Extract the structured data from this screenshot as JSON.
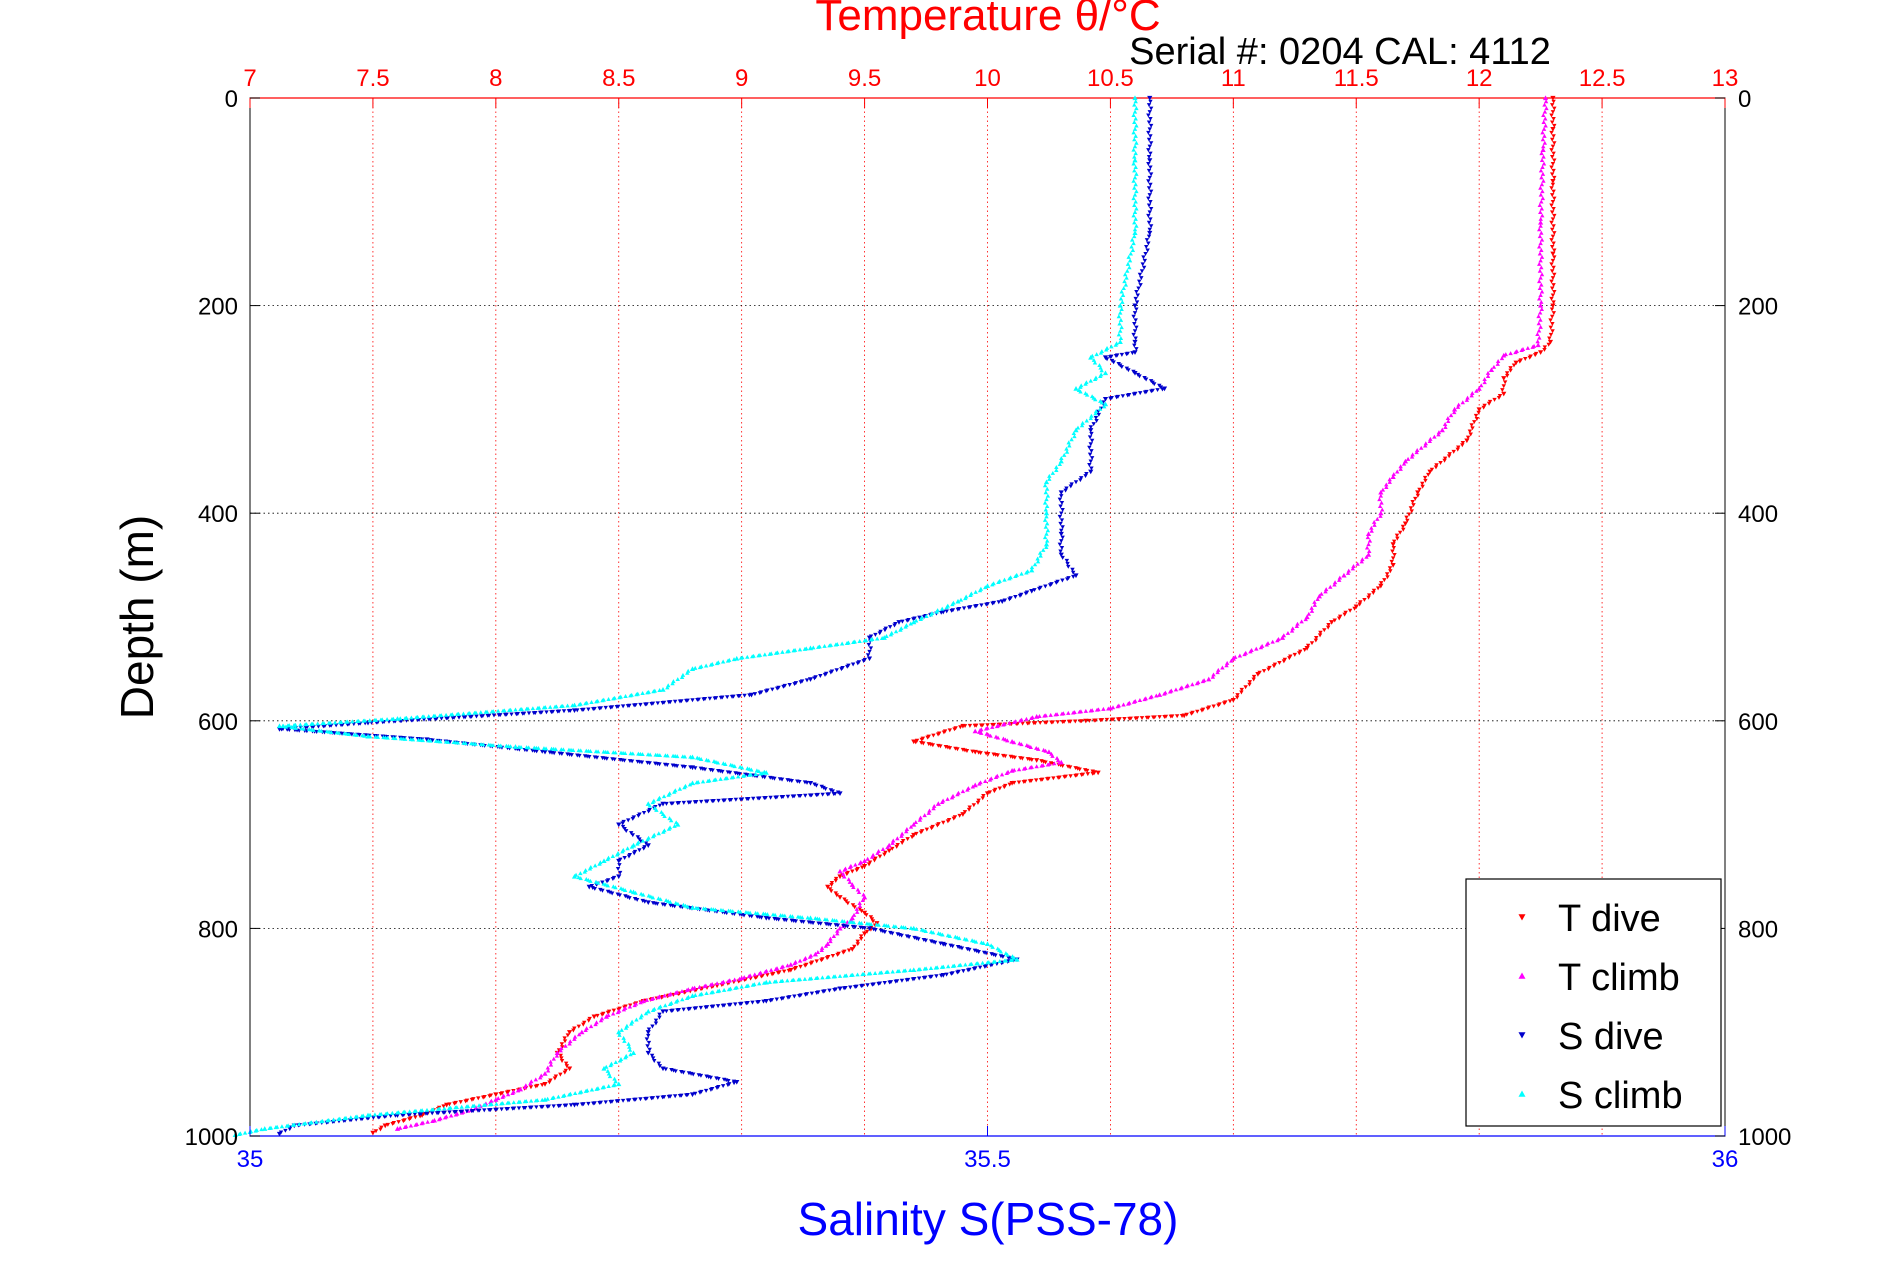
{
  "chart_data": {
    "type": "scatter",
    "title": "Temperature θ/°C",
    "subtitle": "Serial #: 0204  CAL: 4112",
    "xlabel": "Salinity S(PSS-78)",
    "ylabel": "Depth (m)",
    "top_axis": {
      "label": "Temperature θ/°C",
      "lim": [
        7,
        13
      ],
      "ticks": [
        "7",
        "7.5",
        "8",
        "8.5",
        "9",
        "9.5",
        "10",
        "10.5",
        "11",
        "11.5",
        "12",
        "12.5",
        "13"
      ],
      "color": "#ff0000"
    },
    "bottom_axis": {
      "label": "Salinity S(PSS-78)",
      "lim": [
        35,
        36
      ],
      "ticks": [
        "35",
        "35.5",
        "36"
      ],
      "color": "#0000ff"
    },
    "y_axis": {
      "lim": [
        0,
        1000
      ],
      "reversed": true,
      "ticks": [
        "0",
        "200",
        "400",
        "600",
        "800",
        "1000"
      ]
    },
    "grid": true,
    "legend_position": "bottom-right",
    "colors": {
      "t_dive": "#ff0000",
      "t_climb": "#ff00ff",
      "s_dive": "#0000cc",
      "s_climb": "#00ffff",
      "temp_axis": "#ff0000",
      "sal_axis": "#0000ff"
    },
    "series": [
      {
        "key": "t_dive",
        "name": "T dive",
        "axis": "temperature",
        "marker": "triangle-down",
        "points": [
          [
            12.3,
            0
          ],
          [
            12.3,
            30
          ],
          [
            12.3,
            80
          ],
          [
            12.3,
            150
          ],
          [
            12.3,
            200
          ],
          [
            12.29,
            235
          ],
          [
            12.25,
            245
          ],
          [
            12.15,
            255
          ],
          [
            12.1,
            270
          ],
          [
            12.1,
            285
          ],
          [
            12.0,
            300
          ],
          [
            11.95,
            330
          ],
          [
            11.8,
            360
          ],
          [
            11.75,
            380
          ],
          [
            11.7,
            410
          ],
          [
            11.65,
            430
          ],
          [
            11.65,
            450
          ],
          [
            11.6,
            470
          ],
          [
            11.5,
            490
          ],
          [
            11.4,
            505
          ],
          [
            11.3,
            530
          ],
          [
            11.1,
            555
          ],
          [
            11.0,
            580
          ],
          [
            10.8,
            595
          ],
          [
            10.4,
            600
          ],
          [
            9.9,
            605
          ],
          [
            9.7,
            620
          ],
          [
            9.95,
            630
          ],
          [
            10.2,
            638
          ],
          [
            10.45,
            650
          ],
          [
            10.1,
            660
          ],
          [
            10.0,
            670
          ],
          [
            9.9,
            690
          ],
          [
            9.7,
            710
          ],
          [
            9.6,
            725
          ],
          [
            9.5,
            740
          ],
          [
            9.4,
            750
          ],
          [
            9.35,
            760
          ],
          [
            9.4,
            770
          ],
          [
            9.5,
            785
          ],
          [
            9.55,
            795
          ],
          [
            9.5,
            805
          ],
          [
            9.45,
            820
          ],
          [
            9.2,
            840
          ],
          [
            8.9,
            855
          ],
          [
            8.6,
            870
          ],
          [
            8.4,
            885
          ],
          [
            8.3,
            900
          ],
          [
            8.25,
            920
          ],
          [
            8.3,
            935
          ],
          [
            8.2,
            950
          ],
          [
            8.0,
            960
          ],
          [
            7.8,
            970
          ],
          [
            7.7,
            980
          ],
          [
            7.55,
            990
          ],
          [
            7.5,
            997
          ]
        ]
      },
      {
        "key": "t_climb",
        "name": "T climb",
        "axis": "temperature",
        "marker": "triangle-up",
        "points": [
          [
            12.27,
            0
          ],
          [
            12.26,
            50
          ],
          [
            12.25,
            120
          ],
          [
            12.25,
            200
          ],
          [
            12.24,
            238
          ],
          [
            12.1,
            248
          ],
          [
            12.05,
            262
          ],
          [
            12.0,
            280
          ],
          [
            11.9,
            300
          ],
          [
            11.85,
            320
          ],
          [
            11.7,
            350
          ],
          [
            11.65,
            365
          ],
          [
            11.6,
            380
          ],
          [
            11.6,
            400
          ],
          [
            11.55,
            420
          ],
          [
            11.55,
            440
          ],
          [
            11.45,
            460
          ],
          [
            11.35,
            480
          ],
          [
            11.3,
            500
          ],
          [
            11.2,
            520
          ],
          [
            11.0,
            540
          ],
          [
            10.9,
            560
          ],
          [
            10.7,
            575
          ],
          [
            10.5,
            588
          ],
          [
            10.2,
            596
          ],
          [
            9.95,
            610
          ],
          [
            10.1,
            620
          ],
          [
            10.25,
            630
          ],
          [
            10.3,
            640
          ],
          [
            10.1,
            648
          ],
          [
            9.95,
            662
          ],
          [
            9.8,
            680
          ],
          [
            9.7,
            700
          ],
          [
            9.6,
            720
          ],
          [
            9.5,
            735
          ],
          [
            9.4,
            745
          ],
          [
            9.45,
            758
          ],
          [
            9.5,
            770
          ],
          [
            9.45,
            790
          ],
          [
            9.4,
            800
          ],
          [
            9.35,
            815
          ],
          [
            9.3,
            825
          ],
          [
            9.2,
            835
          ],
          [
            9.0,
            848
          ],
          [
            8.8,
            858
          ],
          [
            8.6,
            870
          ],
          [
            8.45,
            885
          ],
          [
            8.35,
            900
          ],
          [
            8.25,
            920
          ],
          [
            8.2,
            940
          ],
          [
            8.1,
            955
          ],
          [
            8.0,
            965
          ],
          [
            7.9,
            975
          ],
          [
            7.75,
            985
          ],
          [
            7.6,
            993
          ]
        ]
      },
      {
        "key": "s_dive",
        "name": "S dive",
        "axis": "salinity",
        "marker": "triangle-down",
        "points": [
          [
            35.61,
            0
          ],
          [
            35.61,
            60
          ],
          [
            35.61,
            130
          ],
          [
            35.6,
            200
          ],
          [
            35.6,
            235
          ],
          [
            35.6,
            245
          ],
          [
            35.58,
            250
          ],
          [
            35.6,
            265
          ],
          [
            35.62,
            280
          ],
          [
            35.58,
            290
          ],
          [
            35.57,
            320
          ],
          [
            35.57,
            360
          ],
          [
            35.55,
            380
          ],
          [
            35.55,
            420
          ],
          [
            35.55,
            440
          ],
          [
            35.56,
            460
          ],
          [
            35.53,
            475
          ],
          [
            35.51,
            485
          ],
          [
            35.47,
            495
          ],
          [
            35.44,
            505
          ],
          [
            35.42,
            520
          ],
          [
            35.42,
            540
          ],
          [
            35.38,
            560
          ],
          [
            35.34,
            575
          ],
          [
            35.22,
            590
          ],
          [
            35.08,
            602
          ],
          [
            35.02,
            608
          ],
          [
            35.12,
            618
          ],
          [
            35.2,
            630
          ],
          [
            35.3,
            645
          ],
          [
            35.38,
            660
          ],
          [
            35.4,
            670
          ],
          [
            35.28,
            680
          ],
          [
            35.25,
            700
          ],
          [
            35.27,
            720
          ],
          [
            35.25,
            735
          ],
          [
            35.25,
            750
          ],
          [
            35.23,
            760
          ],
          [
            35.27,
            775
          ],
          [
            35.35,
            790
          ],
          [
            35.42,
            800
          ],
          [
            35.47,
            815
          ],
          [
            35.52,
            830
          ],
          [
            35.47,
            845
          ],
          [
            35.4,
            858
          ],
          [
            35.35,
            870
          ],
          [
            35.28,
            880
          ],
          [
            35.27,
            900
          ],
          [
            35.27,
            920
          ],
          [
            35.28,
            935
          ],
          [
            35.33,
            948
          ],
          [
            35.3,
            960
          ],
          [
            35.22,
            970
          ],
          [
            35.1,
            980
          ],
          [
            35.03,
            990
          ],
          [
            35.02,
            998
          ]
        ]
      },
      {
        "key": "s_climb",
        "name": "S climb",
        "axis": "salinity",
        "marker": "triangle-up",
        "points": [
          [
            35.6,
            0
          ],
          [
            35.6,
            60
          ],
          [
            35.6,
            130
          ],
          [
            35.59,
            200
          ],
          [
            35.59,
            235
          ],
          [
            35.57,
            250
          ],
          [
            35.58,
            265
          ],
          [
            35.56,
            280
          ],
          [
            35.58,
            295
          ],
          [
            35.56,
            320
          ],
          [
            35.55,
            350
          ],
          [
            35.54,
            370
          ],
          [
            35.54,
            400
          ],
          [
            35.54,
            430
          ],
          [
            35.53,
            455
          ],
          [
            35.5,
            470
          ],
          [
            35.48,
            485
          ],
          [
            35.45,
            505
          ],
          [
            35.43,
            520
          ],
          [
            35.38,
            530
          ],
          [
            35.33,
            540
          ],
          [
            35.3,
            550
          ],
          [
            35.28,
            570
          ],
          [
            35.22,
            585
          ],
          [
            35.1,
            598
          ],
          [
            35.02,
            605
          ],
          [
            35.08,
            615
          ],
          [
            35.18,
            625
          ],
          [
            35.3,
            635
          ],
          [
            35.35,
            650
          ],
          [
            35.3,
            660
          ],
          [
            35.27,
            680
          ],
          [
            35.29,
            700
          ],
          [
            35.26,
            720
          ],
          [
            35.24,
            735
          ],
          [
            35.22,
            750
          ],
          [
            35.26,
            765
          ],
          [
            35.3,
            780
          ],
          [
            35.38,
            790
          ],
          [
            35.45,
            800
          ],
          [
            35.5,
            815
          ],
          [
            35.52,
            830
          ],
          [
            35.45,
            840
          ],
          [
            35.35,
            852
          ],
          [
            35.3,
            865
          ],
          [
            35.27,
            880
          ],
          [
            35.25,
            900
          ],
          [
            35.26,
            920
          ],
          [
            35.24,
            935
          ],
          [
            35.25,
            950
          ],
          [
            35.2,
            965
          ],
          [
            35.08,
            980
          ],
          [
            35.01,
            993
          ],
          [
            34.99,
            999
          ]
        ]
      }
    ]
  }
}
